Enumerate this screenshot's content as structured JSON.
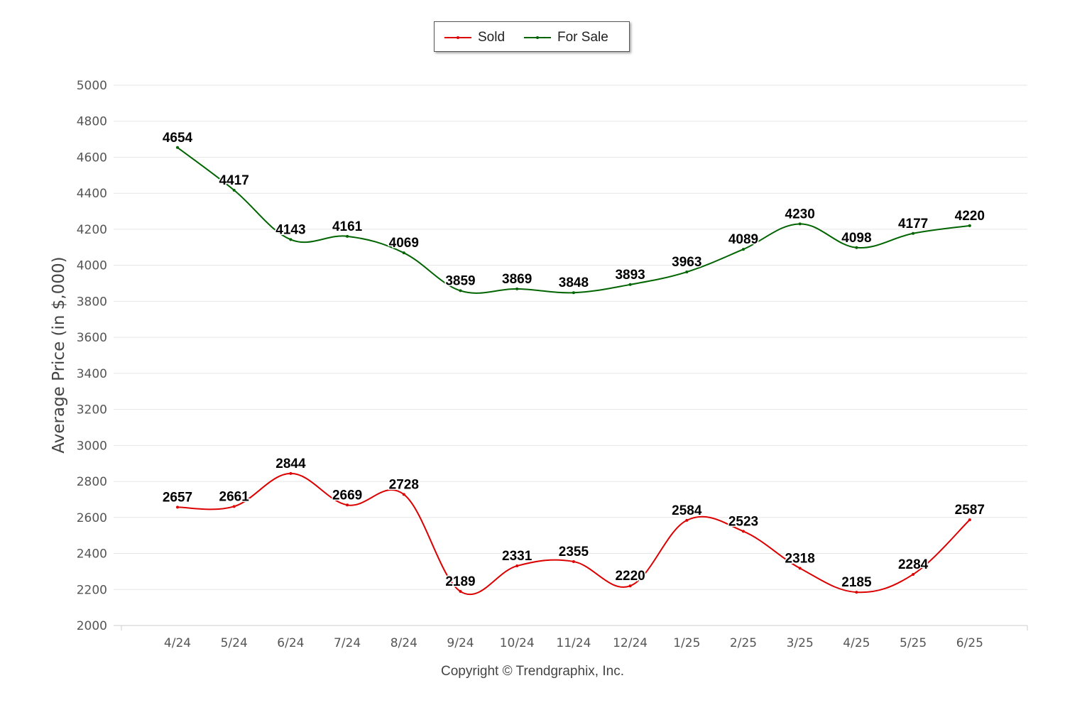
{
  "chart_data": {
    "type": "line",
    "categories": [
      "4/24",
      "5/24",
      "6/24",
      "7/24",
      "8/24",
      "9/24",
      "10/24",
      "11/24",
      "12/24",
      "1/25",
      "2/25",
      "3/25",
      "4/25",
      "5/25",
      "6/25"
    ],
    "series": [
      {
        "name": "Sold",
        "color": "#dd0000",
        "values": [
          2657,
          2661,
          2844,
          2669,
          2728,
          2189,
          2331,
          2355,
          2220,
          2584,
          2523,
          2318,
          2185,
          2284,
          2587
        ]
      },
      {
        "name": "For Sale",
        "color": "#006400",
        "values": [
          4654,
          4417,
          4143,
          4161,
          4069,
          3859,
          3869,
          3848,
          3893,
          3963,
          4089,
          4230,
          4098,
          4177,
          4220
        ]
      }
    ],
    "ylabel": "Average Price (in $,000)",
    "xlabel": "",
    "ylim": [
      2000,
      5000
    ],
    "yticks": [
      2000,
      2200,
      2400,
      2600,
      2800,
      3000,
      3200,
      3400,
      3600,
      3800,
      4000,
      4200,
      4400,
      4600,
      4800,
      5000
    ],
    "grid": true,
    "legend_position": "top-center",
    "data_labels": true
  },
  "legend": {
    "sold_label": "Sold",
    "for_sale_label": "For Sale"
  },
  "footer": {
    "copyright": "Copyright © Trendgraphix, Inc."
  }
}
